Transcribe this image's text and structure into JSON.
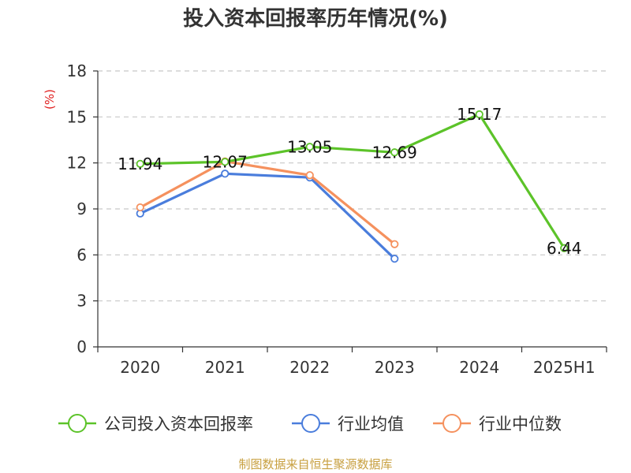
{
  "chart_data": {
    "type": "line",
    "title": "投入资本回报率历年情况(%)",
    "ylabel": "(%)",
    "categories": [
      "2020",
      "2021",
      "2022",
      "2023",
      "2024",
      "2025H1"
    ],
    "ylim": [
      0,
      18
    ],
    "yticks": [
      "0",
      "3",
      "6",
      "9",
      "12",
      "15",
      "18"
    ],
    "grid": true,
    "legend_position": "bottom",
    "series": [
      {
        "name": "公司投入资本回报率",
        "color": "#5cc329",
        "values": [
          11.94,
          12.07,
          13.05,
          12.69,
          15.17,
          6.44
        ],
        "labels": [
          "11.94",
          "12.07",
          "13.05",
          "12.69",
          "15.17",
          "6.44"
        ]
      },
      {
        "name": "行业均值",
        "color": "#4a7ddc",
        "values": [
          8.7,
          11.3,
          11.05,
          5.75,
          null,
          null
        ]
      },
      {
        "name": "行业中位数",
        "color": "#f5915e",
        "values": [
          9.1,
          12.1,
          11.2,
          6.7,
          null,
          null
        ]
      }
    ]
  },
  "source": "制图数据来自恒生聚源数据库"
}
